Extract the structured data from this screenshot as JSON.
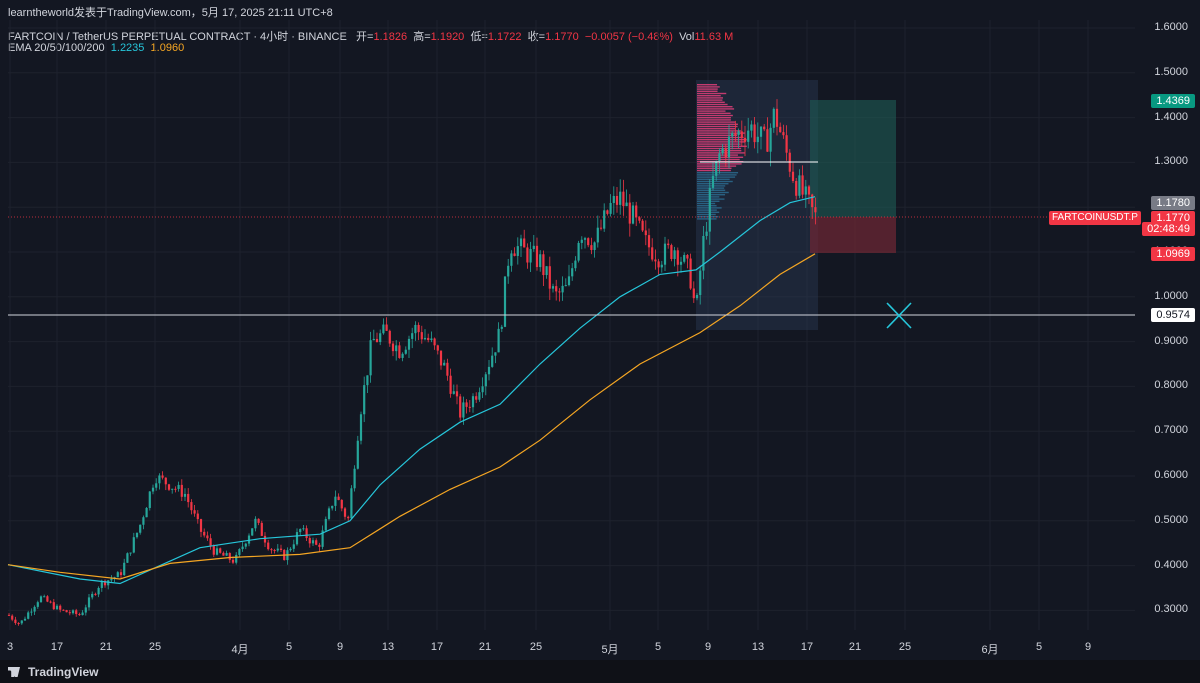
{
  "publisher": "learntheworld发表于TradingView.com，5月 17, 2025 21:11 UTC+8",
  "legend": {
    "symbol": "FARTCOIN / TetherUS PERPETUAL CONTRACT · 4小时 · BINANCE",
    "open_label": "开=",
    "open": "1.1826",
    "high_label": "高=",
    "high": "1.1920",
    "low_label": "低=",
    "low": "1.1722",
    "close_label": "收=",
    "close": "1.1770",
    "change": "−0.0057 (−0.48%)",
    "vol_label": "Vol",
    "vol": "11.63 M",
    "ema_label": "EMA 20/50/100/200",
    "ema1": "1.2235",
    "ema2": "1.0960"
  },
  "y_axis": [
    "1.6000",
    "1.5000",
    "1.4000",
    "1.3000",
    "1.2000",
    "1.1000",
    "1.0000",
    "0.9000",
    "0.8000",
    "0.7000",
    "0.6000",
    "0.5000",
    "0.4000",
    "0.3000"
  ],
  "x_axis": [
    "3",
    "17",
    "21",
    "25",
    "4月",
    "5",
    "9",
    "13",
    "17",
    "21",
    "25",
    "5月",
    "5",
    "9",
    "13",
    "17",
    "21",
    "25",
    "6月",
    "5",
    "9"
  ],
  "price_badges": {
    "target": "1.4369",
    "prev": "1.1780",
    "last": "1.1770",
    "countdown": "02:48:49",
    "stop": "1.0969",
    "line": "0.9574"
  },
  "symbol_tag": "FARTCOINUSDT.P",
  "brand": "TradingView",
  "colors": {
    "bg": "#131722",
    "up": "#26a69a",
    "down": "#f23645",
    "ema_teal": "#26c6da",
    "ema_orange": "#f5a623"
  },
  "chart_data": {
    "type": "candlestick",
    "y_range": [
      0.25,
      1.62
    ],
    "ema_short_last": 1.2235,
    "ema_long_last": 1.096,
    "horizontal_line": 0.9574,
    "position": {
      "entry": 1.177,
      "target": 1.4369,
      "stop": 1.0969
    }
  }
}
